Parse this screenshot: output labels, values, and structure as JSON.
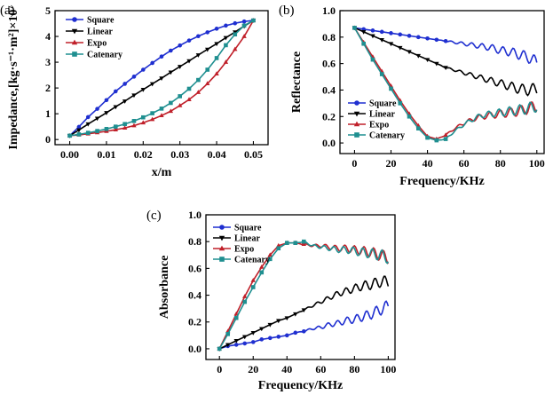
{
  "chart_data": [
    {
      "type": "line",
      "panel_label": "(a)",
      "xlabel": "x/m",
      "ylabel": "Impedance,[kg·s⁻¹·m²]×10⁷",
      "xlim": [
        -0.004,
        0.054
      ],
      "ylim": [
        -0.2,
        5.0
      ],
      "xticks": [
        "0.00",
        "0.01",
        "0.02",
        "0.03",
        "0.04",
        "0.05"
      ],
      "xtick_values": [
        0,
        0.01,
        0.02,
        0.03,
        0.04,
        0.05
      ],
      "yticks": [
        "0",
        "1",
        "2",
        "3",
        "4",
        "5"
      ],
      "ytick_values": [
        0,
        1,
        2,
        3,
        4,
        5
      ],
      "legend_position": "top-left",
      "series": [
        {
          "name": "Square",
          "color": "#1f2fd0",
          "marker": "circle",
          "x": [
            0,
            0.0025,
            0.005,
            0.0075,
            0.01,
            0.0125,
            0.015,
            0.0175,
            0.02,
            0.0225,
            0.025,
            0.0275,
            0.03,
            0.0325,
            0.035,
            0.0375,
            0.04,
            0.0425,
            0.045,
            0.0475,
            0.05
          ],
          "y": [
            0.15,
            0.49,
            0.87,
            1.19,
            1.53,
            1.87,
            2.16,
            2.44,
            2.71,
            2.97,
            3.22,
            3.45,
            3.65,
            3.84,
            4.01,
            4.16,
            4.3,
            4.42,
            4.51,
            4.58,
            4.62
          ]
        },
        {
          "name": "Linear",
          "color": "#000000",
          "marker": "triangle-down",
          "x": [
            0,
            0.0025,
            0.005,
            0.0075,
            0.01,
            0.0125,
            0.015,
            0.0175,
            0.02,
            0.0225,
            0.025,
            0.0275,
            0.03,
            0.0325,
            0.035,
            0.0375,
            0.04,
            0.0425,
            0.045,
            0.0475,
            0.05
          ],
          "y": [
            0.15,
            0.37,
            0.6,
            0.82,
            1.04,
            1.27,
            1.49,
            1.72,
            1.94,
            2.16,
            2.38,
            2.61,
            2.83,
            3.05,
            3.28,
            3.5,
            3.72,
            3.95,
            4.17,
            4.4,
            4.62
          ]
        },
        {
          "name": "Expo",
          "color": "#c0202a",
          "marker": "triangle-up",
          "x": [
            0,
            0.0025,
            0.005,
            0.0075,
            0.01,
            0.0125,
            0.015,
            0.0175,
            0.02,
            0.0225,
            0.025,
            0.0275,
            0.03,
            0.0325,
            0.035,
            0.0375,
            0.04,
            0.0425,
            0.045,
            0.0475,
            0.05
          ],
          "y": [
            0.15,
            0.18,
            0.22,
            0.27,
            0.32,
            0.38,
            0.45,
            0.54,
            0.65,
            0.78,
            0.93,
            1.1,
            1.32,
            1.55,
            1.83,
            2.17,
            2.55,
            3.0,
            3.5,
            4.0,
            4.62
          ]
        },
        {
          "name": "Catenary",
          "color": "#1f8f90",
          "marker": "square",
          "x": [
            0,
            0.0025,
            0.005,
            0.0075,
            0.01,
            0.0125,
            0.015,
            0.0175,
            0.02,
            0.0225,
            0.025,
            0.0275,
            0.03,
            0.0325,
            0.035,
            0.0375,
            0.04,
            0.0425,
            0.045,
            0.0475,
            0.05
          ],
          "y": [
            0.15,
            0.2,
            0.26,
            0.33,
            0.41,
            0.5,
            0.6,
            0.72,
            0.86,
            1.02,
            1.2,
            1.42,
            1.68,
            1.97,
            2.31,
            2.71,
            3.16,
            3.66,
            4.08,
            4.42,
            4.62
          ]
        }
      ]
    },
    {
      "type": "line",
      "panel_label": "(b)",
      "xlabel": "Frequency/KHz",
      "ylabel": "Reflectance",
      "xlim": [
        -8,
        104
      ],
      "ylim": [
        -0.08,
        1.0
      ],
      "xticks": [
        "0",
        "20",
        "40",
        "60",
        "80",
        "100"
      ],
      "xtick_values": [
        0,
        20,
        40,
        60,
        80,
        100
      ],
      "yticks": [
        "0.0",
        "0.2",
        "0.4",
        "0.6",
        "0.8",
        "1.0"
      ],
      "ytick_values": [
        0,
        0.2,
        0.4,
        0.6,
        0.8,
        1.0
      ],
      "legend_position": "bottom-left",
      "series": [
        {
          "name": "Square",
          "color": "#1f2fd0",
          "marker": "circle",
          "x": [
            0,
            5,
            10,
            15,
            20,
            25,
            30,
            35,
            40,
            45,
            50,
            55,
            60,
            65,
            70,
            75,
            80,
            85,
            90,
            95,
            100
          ],
          "y": [
            0.87,
            0.86,
            0.85,
            0.84,
            0.83,
            0.82,
            0.81,
            0.8,
            0.79,
            0.78,
            0.77,
            0.76,
            0.75,
            0.74,
            0.73,
            0.72,
            0.7,
            0.69,
            0.67,
            0.65,
            0.61
          ]
        },
        {
          "name": "Linear",
          "color": "#000000",
          "marker": "triangle-down",
          "x": [
            0,
            5,
            10,
            15,
            20,
            25,
            30,
            35,
            40,
            45,
            50,
            55,
            60,
            65,
            70,
            75,
            80,
            85,
            90,
            95,
            100
          ],
          "y": [
            0.87,
            0.84,
            0.81,
            0.78,
            0.75,
            0.72,
            0.69,
            0.66,
            0.63,
            0.6,
            0.57,
            0.55,
            0.53,
            0.51,
            0.49,
            0.47,
            0.45,
            0.43,
            0.41,
            0.4,
            0.41
          ]
        },
        {
          "name": "Expo",
          "color": "#c0202a",
          "marker": "triangle-up",
          "x": [
            0,
            5,
            10,
            15,
            20,
            25,
            30,
            35,
            40,
            45,
            50,
            55,
            60,
            65,
            70,
            75,
            80,
            85,
            90,
            95,
            100
          ],
          "y": [
            0.87,
            0.76,
            0.65,
            0.54,
            0.43,
            0.32,
            0.22,
            0.13,
            0.05,
            0.03,
            0.06,
            0.11,
            0.15,
            0.18,
            0.2,
            0.21,
            0.22,
            0.23,
            0.24,
            0.26,
            0.28
          ]
        },
        {
          "name": "Catenary",
          "color": "#1f8f90",
          "marker": "square",
          "x": [
            0,
            5,
            10,
            15,
            20,
            25,
            30,
            35,
            40,
            45,
            50,
            55,
            60,
            65,
            70,
            75,
            80,
            85,
            90,
            95,
            100
          ],
          "y": [
            0.87,
            0.75,
            0.63,
            0.52,
            0.41,
            0.3,
            0.2,
            0.11,
            0.04,
            0.02,
            0.03,
            0.09,
            0.14,
            0.18,
            0.21,
            0.22,
            0.23,
            0.24,
            0.25,
            0.26,
            0.28
          ]
        }
      ]
    },
    {
      "type": "line",
      "panel_label": "(c)",
      "xlabel": "Frequency/KHz",
      "ylabel": "Absorbance",
      "xlim": [
        -8,
        104
      ],
      "ylim": [
        -0.08,
        1.0
      ],
      "xticks": [
        "0",
        "20",
        "40",
        "60",
        "80",
        "100"
      ],
      "xtick_values": [
        0,
        20,
        40,
        60,
        80,
        100
      ],
      "yticks": [
        "0.0",
        "0.2",
        "0.4",
        "0.6",
        "0.8",
        "1.0"
      ],
      "ytick_values": [
        0,
        0.2,
        0.4,
        0.6,
        0.8,
        1.0
      ],
      "legend_position": "top-left",
      "series": [
        {
          "name": "Square",
          "color": "#1f2fd0",
          "marker": "circle",
          "x": [
            0,
            5,
            10,
            15,
            20,
            25,
            30,
            35,
            40,
            45,
            50,
            55,
            60,
            65,
            70,
            75,
            80,
            85,
            90,
            95,
            100
          ],
          "y": [
            0.0,
            0.02,
            0.03,
            0.04,
            0.05,
            0.07,
            0.08,
            0.09,
            0.1,
            0.12,
            0.13,
            0.15,
            0.16,
            0.18,
            0.19,
            0.21,
            0.22,
            0.24,
            0.26,
            0.29,
            0.32
          ]
        },
        {
          "name": "Linear",
          "color": "#000000",
          "marker": "triangle-down",
          "x": [
            0,
            5,
            10,
            15,
            20,
            25,
            30,
            35,
            40,
            45,
            50,
            55,
            60,
            65,
            70,
            75,
            80,
            85,
            90,
            95,
            100
          ],
          "y": [
            0.0,
            0.03,
            0.06,
            0.09,
            0.12,
            0.15,
            0.18,
            0.21,
            0.23,
            0.26,
            0.29,
            0.32,
            0.35,
            0.38,
            0.41,
            0.43,
            0.45,
            0.47,
            0.48,
            0.5,
            0.5
          ]
        },
        {
          "name": "Expo",
          "color": "#c0202a",
          "marker": "triangle-up",
          "x": [
            0,
            5,
            10,
            15,
            20,
            25,
            30,
            35,
            40,
            45,
            50,
            55,
            60,
            65,
            70,
            75,
            80,
            85,
            90,
            95,
            100
          ],
          "y": [
            0.0,
            0.13,
            0.26,
            0.39,
            0.51,
            0.61,
            0.7,
            0.77,
            0.79,
            0.79,
            0.78,
            0.77,
            0.77,
            0.76,
            0.75,
            0.75,
            0.74,
            0.73,
            0.72,
            0.7,
            0.68
          ]
        },
        {
          "name": "Catenary",
          "color": "#1f8f90",
          "marker": "square",
          "x": [
            0,
            5,
            10,
            15,
            20,
            25,
            30,
            35,
            40,
            45,
            50,
            55,
            60,
            65,
            70,
            75,
            80,
            85,
            90,
            95,
            100
          ],
          "y": [
            0.0,
            0.11,
            0.23,
            0.35,
            0.46,
            0.57,
            0.67,
            0.75,
            0.79,
            0.79,
            0.8,
            0.77,
            0.76,
            0.75,
            0.74,
            0.74,
            0.73,
            0.72,
            0.71,
            0.7,
            0.68
          ]
        }
      ]
    }
  ]
}
